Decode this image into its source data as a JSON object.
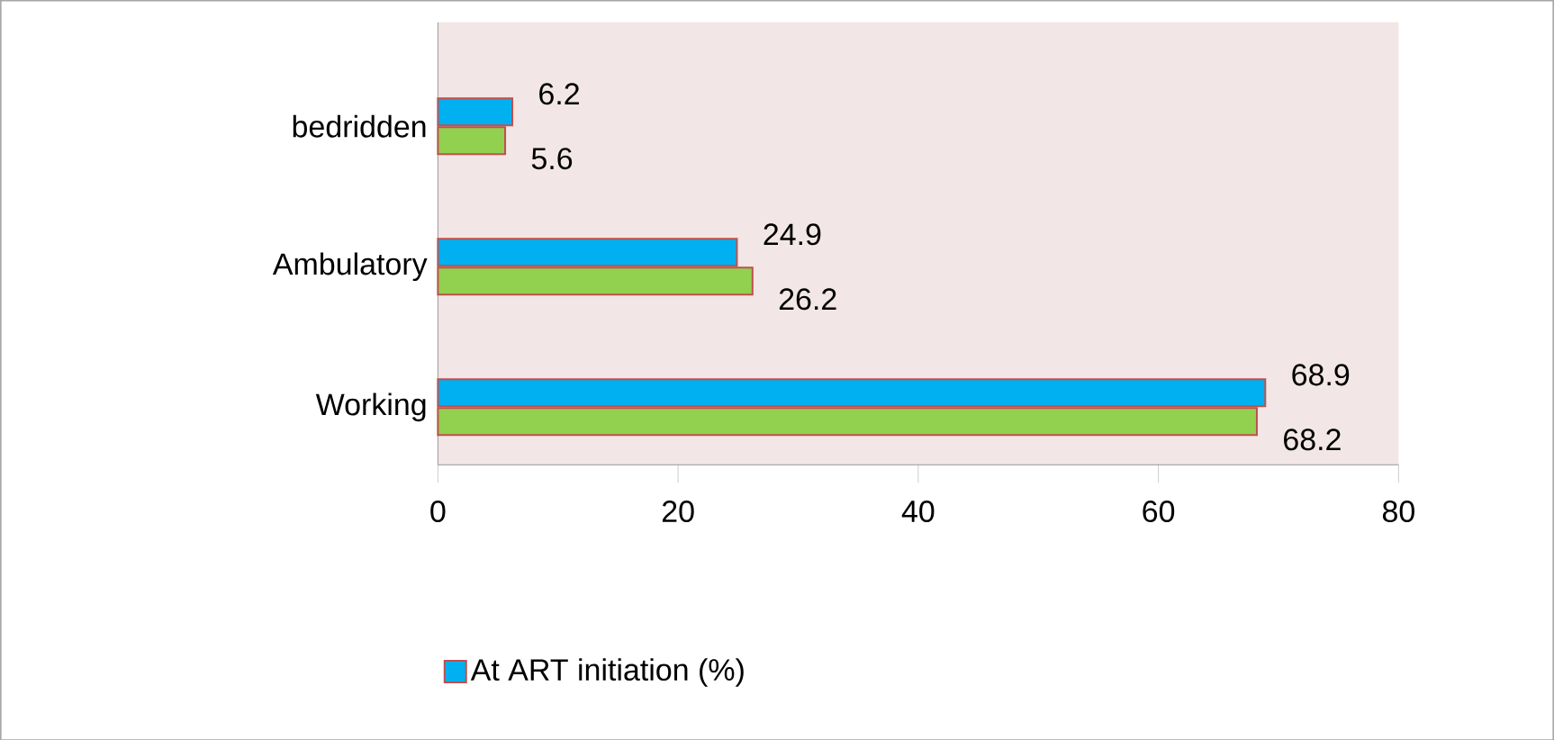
{
  "chart_data": {
    "type": "bar",
    "orientation": "horizontal",
    "categories": [
      "bedridden",
      "Ambulatory",
      "Working"
    ],
    "series": [
      {
        "name": "At ART initiation (%)",
        "color": "#00b0f0",
        "values": [
          6.2,
          24.9,
          68.9
        ]
      },
      {
        "color": "#92d050",
        "values": [
          5.6,
          26.2,
          68.2
        ]
      }
    ],
    "xlim": [
      0,
      80
    ],
    "xticks": [
      0,
      20,
      40,
      60,
      80
    ],
    "data_labels": true,
    "legend": "bottom",
    "grid": false
  }
}
